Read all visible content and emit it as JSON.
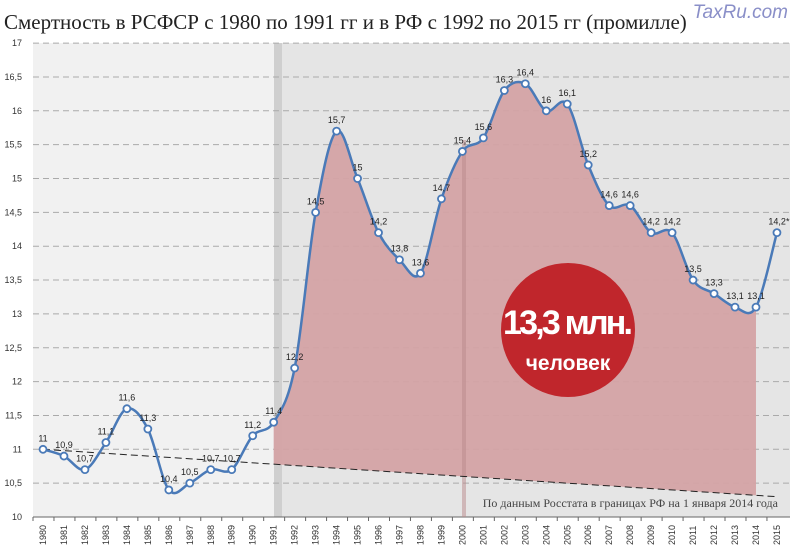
{
  "chart_data": {
    "type": "area",
    "title": "Смертность в РСФСР с 1980 по 1991 гг и в РФ с 1992 по 2015 гг (промилле)",
    "x": [
      1980,
      1981,
      1982,
      1983,
      1984,
      1985,
      1986,
      1987,
      1988,
      1989,
      1990,
      1991,
      1992,
      1993,
      1994,
      1995,
      1996,
      1997,
      1998,
      1999,
      2000,
      2001,
      2002,
      2003,
      2004,
      2005,
      2006,
      2007,
      2008,
      2009,
      2010,
      2011,
      2012,
      2013,
      2014,
      2015
    ],
    "values": [
      11,
      10.9,
      10.7,
      11.1,
      11.6,
      11.3,
      10.4,
      10.5,
      10.7,
      10.7,
      11.2,
      11.4,
      12.2,
      14.5,
      15.7,
      15,
      14.2,
      13.8,
      13.6,
      14.7,
      15.4,
      15.6,
      16.3,
      16.4,
      16,
      16.1,
      15.2,
      14.6,
      14.6,
      14.2,
      14.2,
      13.5,
      13.3,
      13.1,
      13.1,
      14.2
    ],
    "data_labels": [
      "11",
      "10,9",
      "10,7",
      "11,1",
      "11,6",
      "11,3",
      "10,4",
      "10,5",
      "10,7",
      "10,7",
      "11,2",
      "11,4",
      "12,2",
      "14,5",
      "15,7",
      "15",
      "14,2",
      "13,8",
      "13,6",
      "14,7",
      "15,4",
      "15,6",
      "16,3",
      "16,4",
      "16",
      "16,1",
      "15,2",
      "14,6",
      "14,6",
      "14,2",
      "14,2",
      "13,5",
      "13,3",
      "13,1",
      "13,1",
      "14,2*"
    ],
    "y_ticks": [
      "10",
      "10,5",
      "11",
      "11,5",
      "12",
      "12,5",
      "13",
      "13,5",
      "14",
      "14,5",
      "15",
      "15,5",
      "16",
      "16,5",
      "17"
    ],
    "ylim": [
      10,
      17
    ],
    "grid": true,
    "trend_line": {
      "start": [
        1980,
        11.0
      ],
      "end": [
        2015,
        10.3
      ]
    },
    "shaded_range": [
      1991,
      2014
    ],
    "annotation_circle": {
      "line1": "13,3 млн.",
      "line2": "человек",
      "color": "#c0262c"
    },
    "source_note": "По данным Росстата в границах РФ на 1 января 2014 года",
    "colors": {
      "line": "#4a7ab8",
      "fill": "#d4a3a5",
      "bg_left": "#f1f1f1",
      "bg_right": "#e5e5e5"
    }
  },
  "watermark": "TaxRu.com"
}
